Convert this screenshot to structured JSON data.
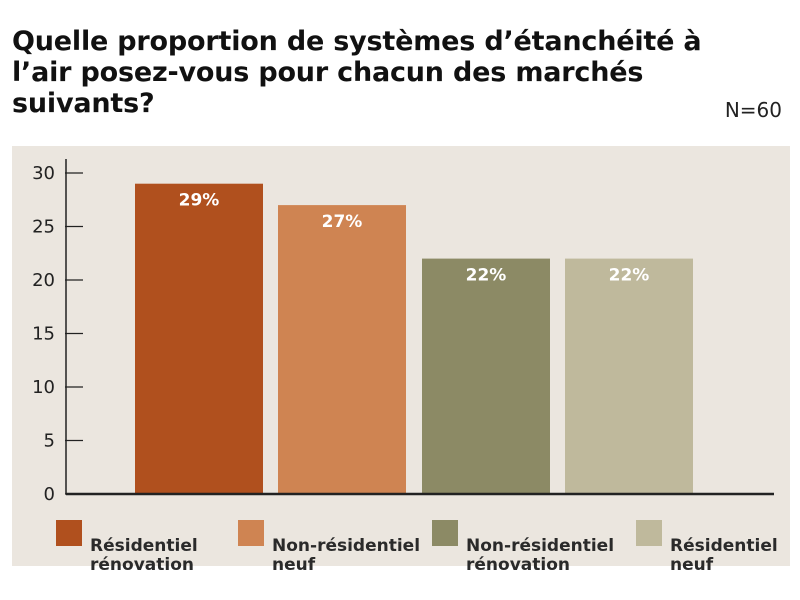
{
  "title": "Quelle proportion de systèmes d’étanchéité à l’air posez-vous pour chacun des marchés suivants?",
  "sample_size": "N=60",
  "colors": {
    "background_panel": "#ebe6df",
    "axis": "#222222"
  },
  "chart_data": {
    "type": "bar",
    "categories": [
      "Résidentiel rénovation",
      "Non-résidentiel neuf",
      "Non-résidentiel rénovation",
      "Résidentiel neuf"
    ],
    "values": [
      29,
      27,
      22,
      22
    ],
    "value_labels": [
      "29%",
      "27%",
      "22%",
      "22%"
    ],
    "colors": [
      "#b0501e",
      "#cf8452",
      "#8c8a65",
      "#bfb99c"
    ],
    "ylim": [
      0,
      30
    ],
    "yticks": [
      0,
      5,
      10,
      15,
      20,
      25,
      30
    ],
    "ytick_labels": [
      "0",
      "5",
      "10",
      "15",
      "20",
      "25",
      "30"
    ],
    "legend": [
      {
        "line1": "Résidentiel",
        "line2": "rénovation",
        "color": "#b0501e"
      },
      {
        "line1": "Non-résidentiel",
        "line2": "neuf",
        "color": "#cf8452"
      },
      {
        "line1": "Non-résidentiel",
        "line2": "rénovation",
        "color": "#8c8a65"
      },
      {
        "line1": "Résidentiel",
        "line2": "neuf",
        "color": "#bfb99c"
      }
    ],
    "legend_position": "bottom",
    "grid": false
  }
}
